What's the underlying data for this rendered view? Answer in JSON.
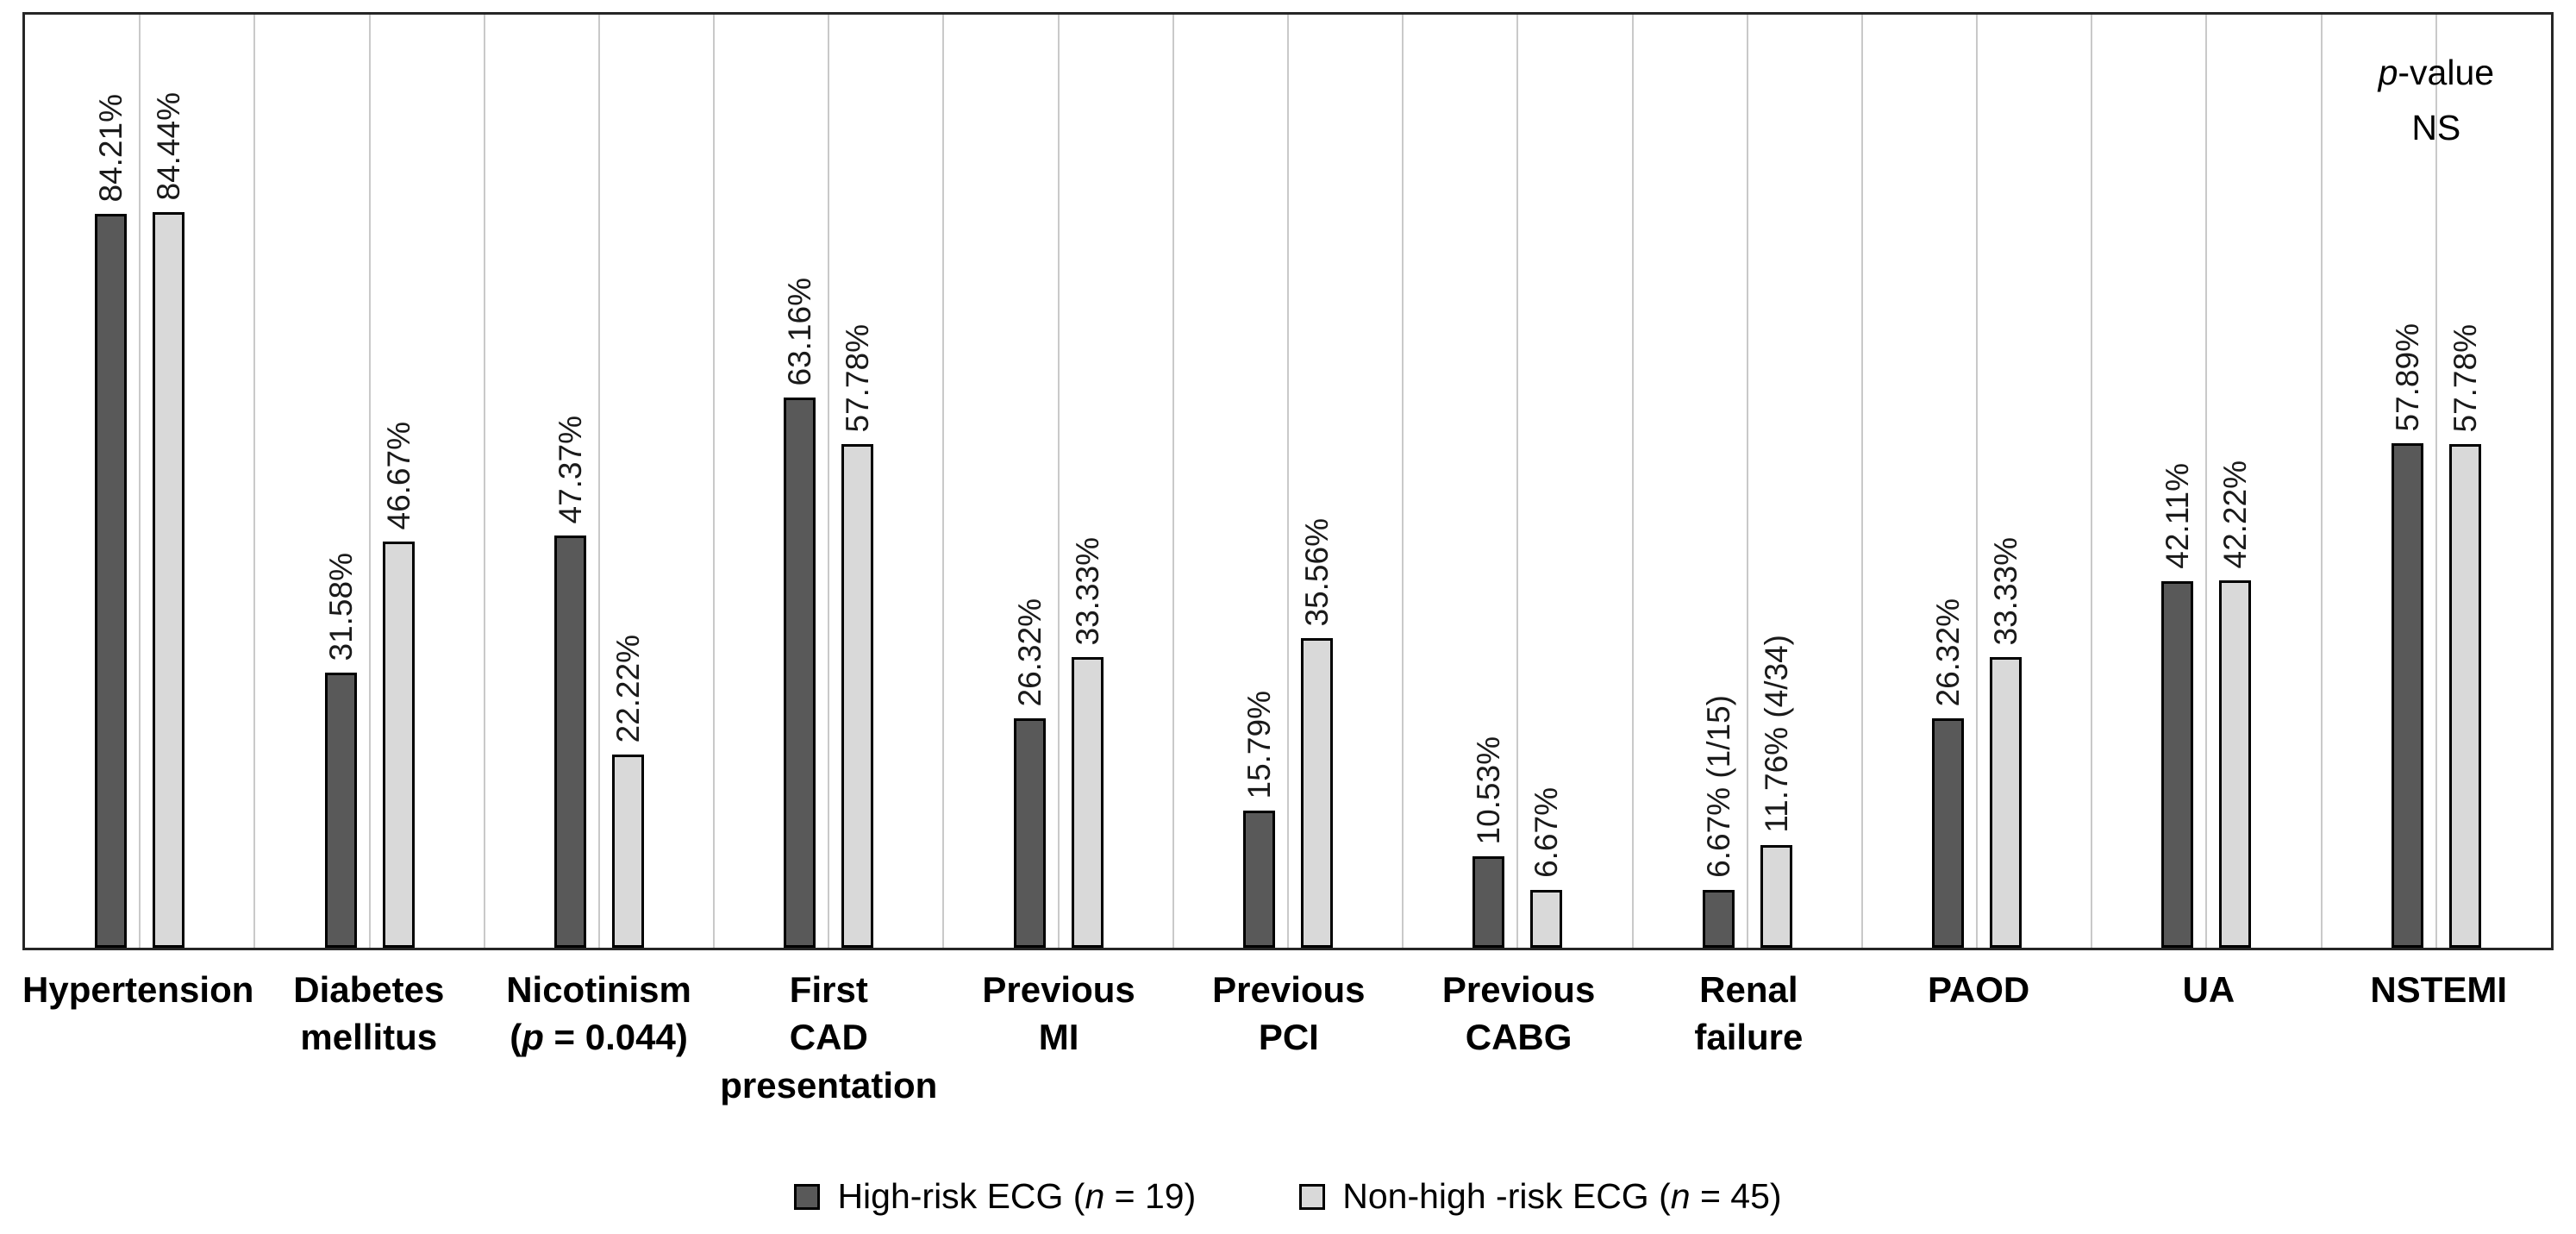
{
  "chart_data": {
    "type": "bar",
    "title": "",
    "categories": [
      "Hypertension",
      "Diabetes\nmellitus",
      "Nicotinism\n(p = 0.044)",
      "First\nCAD\npresentation",
      "Previous\nMI",
      "Previous\nPCI",
      "Previous\nCABG",
      "Renal\nfailure",
      "PAOD",
      "UA",
      "NSTEMI"
    ],
    "series": [
      {
        "name": "High-risk ECG (n = 19)",
        "color": "#595959",
        "values": [
          84.21,
          31.58,
          47.37,
          63.16,
          26.32,
          15.79,
          10.53,
          6.67,
          26.32,
          42.11,
          57.89
        ],
        "labels": [
          "84.21%",
          "31.58%",
          "47.37%",
          "63.16%",
          "26.32%",
          "15.79%",
          "10.53%",
          "6.67% (1/15)",
          "26.32%",
          "42.11%",
          "57.89%"
        ]
      },
      {
        "name": "Non-high -risk ECG (n = 45)",
        "color": "#d9d9d9",
        "values": [
          84.44,
          46.67,
          22.22,
          57.78,
          33.33,
          35.56,
          6.67,
          11.76,
          33.33,
          42.22,
          57.78
        ],
        "labels": [
          "84.44%",
          "46.67%",
          "22.22%",
          "57.78%",
          "33.33%",
          "35.56%",
          "6.67%",
          "11.76% (4/34)",
          "33.33%",
          "42.22%",
          "57.78%"
        ]
      }
    ],
    "annotation": "p-value\nNS",
    "xlabel": "",
    "ylabel": "",
    "ylim": [
      0,
      100
    ],
    "grid": "vertical",
    "legend_position": "bottom"
  }
}
